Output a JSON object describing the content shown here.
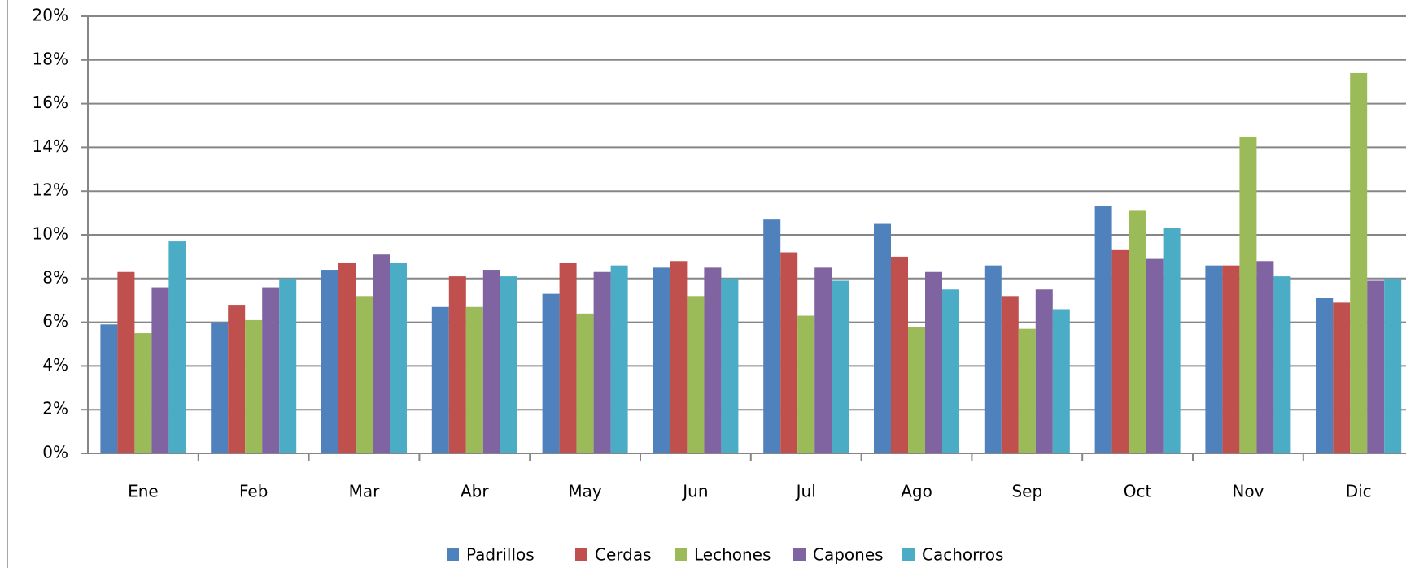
{
  "chart_data": {
    "type": "bar",
    "categories": [
      "Ene",
      "Feb",
      "Mar",
      "Abr",
      "May",
      "Jun",
      "Jul",
      "Ago",
      "Sep",
      "Oct",
      "Nov",
      "Dic"
    ],
    "series": [
      {
        "name": "Padrillos",
        "color": "#4f81bd",
        "values": [
          5.9,
          6.0,
          8.4,
          6.7,
          7.3,
          8.5,
          10.7,
          10.5,
          8.6,
          11.3,
          8.6,
          7.1
        ]
      },
      {
        "name": "Cerdas",
        "color": "#c0504d",
        "values": [
          8.3,
          6.8,
          8.7,
          8.1,
          8.7,
          8.8,
          9.2,
          9.0,
          7.2,
          9.3,
          8.6,
          6.9
        ]
      },
      {
        "name": "Lechones",
        "color": "#9bbb59",
        "values": [
          5.5,
          6.1,
          7.2,
          6.7,
          6.4,
          7.2,
          6.3,
          5.8,
          5.7,
          11.1,
          14.5,
          17.4
        ]
      },
      {
        "name": "Capones",
        "color": "#8064a2",
        "values": [
          7.6,
          7.6,
          9.1,
          8.4,
          8.3,
          8.5,
          8.5,
          8.3,
          7.5,
          8.9,
          8.8,
          7.9
        ]
      },
      {
        "name": "Cachorros",
        "color": "#4bacc6",
        "values": [
          9.7,
          8.0,
          8.7,
          8.1,
          8.6,
          8.0,
          7.9,
          7.5,
          6.6,
          10.3,
          8.1,
          8.0
        ]
      }
    ],
    "ylim": [
      0,
      20
    ],
    "yticks": [
      {
        "value": 0,
        "label": "0%"
      },
      {
        "value": 2,
        "label": "2%"
      },
      {
        "value": 4,
        "label": "4%"
      },
      {
        "value": 6,
        "label": "6%"
      },
      {
        "value": 8,
        "label": "8%"
      },
      {
        "value": 10,
        "label": "10%"
      },
      {
        "value": 12,
        "label": "12%"
      },
      {
        "value": 14,
        "label": "14%"
      },
      {
        "value": 16,
        "label": "16%"
      },
      {
        "value": 18,
        "label": "18%"
      },
      {
        "value": 20,
        "label": "20%"
      }
    ],
    "grid": true,
    "legend": "bottom"
  }
}
